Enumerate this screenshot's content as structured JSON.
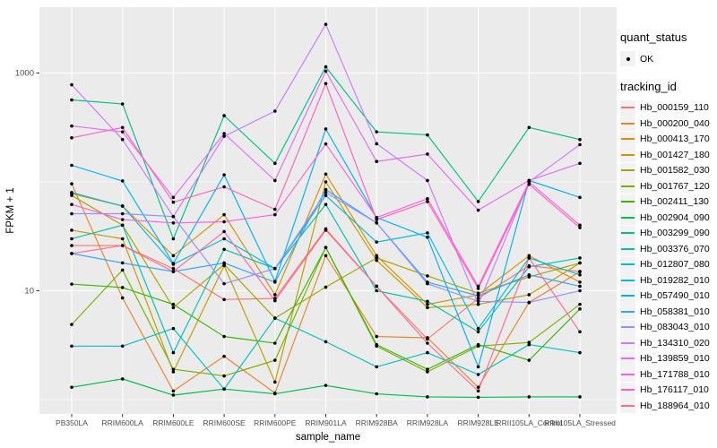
{
  "chart_data": {
    "type": "line",
    "title": "",
    "xlabel": "sample_name",
    "ylabel": "FPKM + 1",
    "yscale": "log10",
    "ylim": [
      1,
      3000
    ],
    "y_major_ticks": [
      10,
      1000
    ],
    "y_minor_ticks": [
      1,
      100
    ],
    "y_tick_labels": [
      "10",
      "1000"
    ],
    "grid": true,
    "legend_position": "right",
    "panel_bg": "#EBEBEB",
    "grid_color": "#FFFFFF",
    "point_color": "#000000",
    "tick_text_color": "#4D4D4D",
    "categories": [
      "PB350LA",
      "RRIM600LA",
      "RRIM600LE",
      "RRIM600SE",
      "RRIM600PE",
      "RRIM901LA",
      "RRIM928BA",
      "RRIM928LA",
      "RRIM928LE",
      "RRII105LA_Control",
      "RRII105LA_Stressed"
    ],
    "series": [
      {
        "name": "Hb_000159_110",
        "color": "#F8766D",
        "values": [
          26,
          26,
          16,
          8.3,
          8.5,
          37,
          11,
          3.6,
          8.5,
          17,
          15
        ]
      },
      {
        "name": "Hb_000200_040",
        "color": "#EA8331",
        "values": [
          96,
          8.6,
          1.2,
          2.5,
          1.15,
          21,
          3.8,
          3.7,
          1.3,
          7.8,
          15
        ]
      },
      {
        "name": "Hb_000413_170",
        "color": "#D89000",
        "values": [
          78,
          60,
          21,
          50,
          9.2,
          118,
          21,
          7.5,
          9.2,
          21,
          12
        ]
      },
      {
        "name": "Hb_001427_180",
        "color": "#C09B00",
        "values": [
          36,
          30,
          1.8,
          17,
          1.45,
          100,
          19,
          7,
          7.5,
          9.2,
          18
        ]
      },
      {
        "name": "Hb_001582_030",
        "color": "#A3A500",
        "values": [
          75,
          40,
          7,
          17.5,
          5.6,
          10.8,
          20,
          13.7,
          9.5,
          13.4,
          18
        ]
      },
      {
        "name": "Hb_001767_120",
        "color": "#7CAE00",
        "values": [
          4.9,
          15.5,
          1.9,
          1.65,
          2.3,
          25,
          3.1,
          1.8,
          3.1,
          3.35,
          7.5
        ]
      },
      {
        "name": "Hb_002411_130",
        "color": "#39B600",
        "values": [
          11.5,
          10.7,
          7.5,
          3.8,
          3.3,
          25,
          3.2,
          1.9,
          3.2,
          2.3,
          6.8
        ]
      },
      {
        "name": "Hb_002904_090",
        "color": "#00BB4E",
        "values": [
          1.3,
          1.55,
          1.1,
          1.25,
          1.13,
          1.35,
          1.13,
          1.06,
          1.05,
          1.06,
          1.06
        ]
      },
      {
        "name": "Hb_003299_090",
        "color": "#00C087",
        "values": [
          566,
          520,
          30,
          406,
          148,
          1140,
          288,
          270,
          66,
          316,
          245
        ]
      },
      {
        "name": "Hb_003376_070",
        "color": "#00C1A9",
        "values": [
          30,
          40,
          2.7,
          24,
          16,
          62,
          10,
          8,
          4.2,
          16.6,
          20
        ]
      },
      {
        "name": "Hb_012807_080",
        "color": "#00BFC4",
        "values": [
          3.1,
          3.1,
          4.5,
          1.25,
          5.6,
          3.4,
          2,
          2.7,
          1.7,
          3.2,
          2.7
        ]
      },
      {
        "name": "Hb_019282_010",
        "color": "#00BAE0",
        "values": [
          80,
          60,
          17.5,
          30,
          16,
          75,
          28,
          34,
          4.5,
          20,
          14
        ]
      },
      {
        "name": "Hb_057490_010",
        "color": "#00B0F6",
        "values": [
          142,
          102,
          17.8,
          116,
          12.2,
          306,
          47,
          31,
          2,
          103,
          72
        ]
      },
      {
        "name": "Hb_058381_010",
        "color": "#35A2FF",
        "values": [
          22,
          18,
          15,
          18,
          12,
          85,
          42,
          12,
          9,
          14,
          11
        ]
      },
      {
        "name": "Hb_083043_010",
        "color": "#9590FF",
        "values": [
          51,
          51,
          48,
          11.6,
          16,
          80,
          42,
          11.6,
          8,
          7.8,
          10
        ]
      },
      {
        "name": "Hb_134310_020",
        "color": "#C77CFF",
        "values": [
          780,
          245,
          48,
          262,
          447,
          2800,
          224,
          103,
          7.5,
          100,
          220
        ]
      },
      {
        "name": "Hb_139859_010",
        "color": "#E76BF3",
        "values": [
          326,
          288,
          72,
          278,
          103,
          1040,
          154,
          180,
          55,
          103,
          148
        ]
      },
      {
        "name": "Hb_171788_010",
        "color": "#FA62DB",
        "values": [
          62,
          45,
          42,
          43,
          50,
          223,
          47,
          70,
          11,
          100,
          40
        ]
      },
      {
        "name": "Hb_176117_010",
        "color": "#FF62BC",
        "values": [
          254,
          316,
          65,
          90,
          56,
          800,
          45,
          66,
          10.5,
          95,
          38
        ]
      },
      {
        "name": "Hb_188964_010",
        "color": "#FF6A98",
        "values": [
          22,
          26,
          15,
          35,
          8.1,
          36,
          11,
          3.3,
          1.2,
          20,
          4.2
        ]
      }
    ]
  },
  "axes": {
    "xlabel": "sample_name",
    "ylabel": "FPKM + 1"
  },
  "legend": {
    "quant_status": {
      "title": "quant_status",
      "items": [
        {
          "label": "OK",
          "symbol": "point"
        }
      ]
    },
    "tracking": {
      "title": "tracking_id"
    }
  },
  "colors": {
    "panel_bg": "#EBEBEB",
    "gridline": "#FFFFFF",
    "tick_text": "#4D4D4D",
    "key_bg": "#F2F2F2",
    "point": "#000000"
  }
}
